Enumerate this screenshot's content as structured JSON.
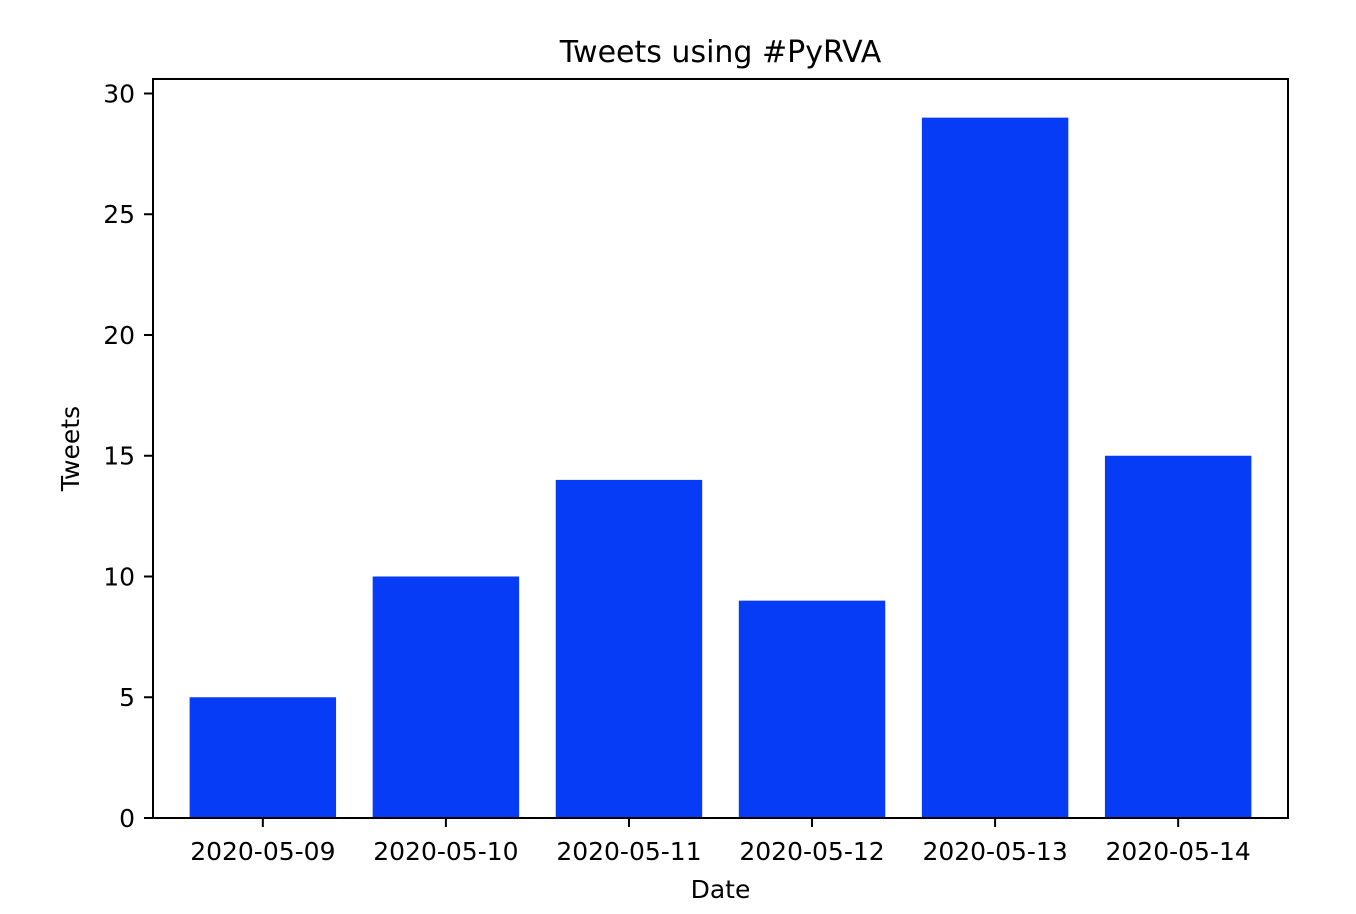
{
  "chart_data": {
    "type": "bar",
    "title": "Tweets using #PyRVA",
    "xlabel": "Date",
    "ylabel": "Tweets",
    "categories": [
      "2020-05-09",
      "2020-05-10",
      "2020-05-11",
      "2020-05-12",
      "2020-05-13",
      "2020-05-14"
    ],
    "values": [
      5,
      10,
      14,
      9,
      29,
      15
    ],
    "ylim": [
      0,
      30
    ],
    "yticks": [
      0,
      5,
      10,
      15,
      20,
      25,
      30
    ],
    "bar_color": "#063cf5",
    "grid": false,
    "legend": "none"
  }
}
